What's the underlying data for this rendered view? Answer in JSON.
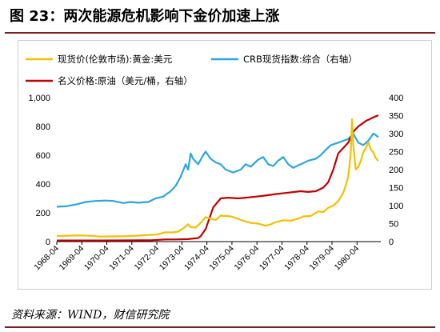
{
  "figure": {
    "title": "图 23：两次能源危机影响下金价加速上涨",
    "source": "资料来源：WIND，财信研究院"
  },
  "colors": {
    "gold": "#f5bf00",
    "crb": "#2ba6de",
    "oil": "#c00000",
    "accent_rule": "#7a1d1d"
  },
  "chart_data": {
    "type": "line",
    "x_tick_labels": [
      "1968-04",
      "1969-04",
      "1970-04",
      "1971-04",
      "1972-04",
      "1973-04",
      "1974-04",
      "1975-04",
      "1976-04",
      "1977-04",
      "1978-04",
      "1979-04",
      "1980-04"
    ],
    "x_range": [
      1968.25,
      1981.2
    ],
    "left_axis": {
      "range": [
        0,
        1000
      ],
      "ticks": [
        "0",
        "200",
        "400",
        "600",
        "800",
        "1,000"
      ]
    },
    "right_axis": {
      "range": [
        0,
        400
      ],
      "ticks": [
        "0",
        "50",
        "100",
        "150",
        "200",
        "250",
        "300",
        "350",
        "400"
      ]
    },
    "legend_position": "top",
    "series": [
      {
        "name": "现货价(伦敦市场):黄金:美元",
        "axis": "left",
        "color": "#f5bf00",
        "points": [
          [
            1968.25,
            39
          ],
          [
            1968.6,
            40
          ],
          [
            1969.0,
            42
          ],
          [
            1969.25,
            43
          ],
          [
            1969.6,
            40
          ],
          [
            1970.0,
            35
          ],
          [
            1970.25,
            36
          ],
          [
            1970.6,
            36
          ],
          [
            1971.0,
            38
          ],
          [
            1971.25,
            39
          ],
          [
            1971.6,
            42
          ],
          [
            1972.0,
            46
          ],
          [
            1972.25,
            49
          ],
          [
            1972.6,
            65
          ],
          [
            1972.9,
            64
          ],
          [
            1973.1,
            70
          ],
          [
            1973.3,
            91
          ],
          [
            1973.5,
            120
          ],
          [
            1973.6,
            100
          ],
          [
            1973.8,
            98
          ],
          [
            1974.0,
            130
          ],
          [
            1974.2,
            170
          ],
          [
            1974.4,
            160
          ],
          [
            1974.6,
            150
          ],
          [
            1974.8,
            180
          ],
          [
            1975.0,
            178
          ],
          [
            1975.2,
            175
          ],
          [
            1975.4,
            165
          ],
          [
            1975.6,
            150
          ],
          [
            1975.8,
            140
          ],
          [
            1976.0,
            130
          ],
          [
            1976.3,
            125
          ],
          [
            1976.6,
            110
          ],
          [
            1976.8,
            120
          ],
          [
            1977.0,
            135
          ],
          [
            1977.3,
            148
          ],
          [
            1977.6,
            145
          ],
          [
            1977.9,
            160
          ],
          [
            1978.1,
            175
          ],
          [
            1978.4,
            178
          ],
          [
            1978.7,
            210
          ],
          [
            1978.9,
            205
          ],
          [
            1979.1,
            235
          ],
          [
            1979.3,
            250
          ],
          [
            1979.5,
            280
          ],
          [
            1979.7,
            340
          ],
          [
            1979.8,
            390
          ],
          [
            1979.9,
            450
          ],
          [
            1980.0,
            620
          ],
          [
            1980.05,
            850
          ],
          [
            1980.1,
            670
          ],
          [
            1980.2,
            500
          ],
          [
            1980.3,
            520
          ],
          [
            1980.4,
            560
          ],
          [
            1980.5,
            620
          ],
          [
            1980.6,
            650
          ],
          [
            1980.7,
            690
          ],
          [
            1980.8,
            640
          ],
          [
            1980.9,
            620
          ],
          [
            1981.0,
            580
          ],
          [
            1981.1,
            560
          ]
        ]
      },
      {
        "name": "CRB现货指数:综合（右轴）",
        "axis": "right",
        "color": "#2ba6de",
        "points": [
          [
            1968.25,
            97
          ],
          [
            1968.6,
            98
          ],
          [
            1969.0,
            103
          ],
          [
            1969.4,
            110
          ],
          [
            1969.8,
            113
          ],
          [
            1970.2,
            114
          ],
          [
            1970.5,
            113
          ],
          [
            1970.9,
            107
          ],
          [
            1971.2,
            110
          ],
          [
            1971.5,
            108
          ],
          [
            1971.9,
            110
          ],
          [
            1972.2,
            120
          ],
          [
            1972.5,
            125
          ],
          [
            1972.8,
            140
          ],
          [
            1973.0,
            155
          ],
          [
            1973.2,
            180
          ],
          [
            1973.4,
            215
          ],
          [
            1973.5,
            200
          ],
          [
            1973.6,
            245
          ],
          [
            1973.7,
            230
          ],
          [
            1973.9,
            215
          ],
          [
            1974.1,
            240
          ],
          [
            1974.2,
            250
          ],
          [
            1974.4,
            230
          ],
          [
            1974.6,
            220
          ],
          [
            1974.8,
            215
          ],
          [
            1975.0,
            200
          ],
          [
            1975.3,
            192
          ],
          [
            1975.6,
            200
          ],
          [
            1975.8,
            215
          ],
          [
            1976.0,
            208
          ],
          [
            1976.3,
            228
          ],
          [
            1976.5,
            235
          ],
          [
            1976.7,
            215
          ],
          [
            1976.9,
            210
          ],
          [
            1977.1,
            225
          ],
          [
            1977.3,
            235
          ],
          [
            1977.5,
            215
          ],
          [
            1977.7,
            205
          ],
          [
            1977.9,
            212
          ],
          [
            1978.1,
            218
          ],
          [
            1978.3,
            225
          ],
          [
            1978.6,
            230
          ],
          [
            1978.8,
            240
          ],
          [
            1979.0,
            255
          ],
          [
            1979.2,
            268
          ],
          [
            1979.5,
            275
          ],
          [
            1979.7,
            280
          ],
          [
            1979.9,
            285
          ],
          [
            1980.1,
            300
          ],
          [
            1980.3,
            275
          ],
          [
            1980.5,
            268
          ],
          [
            1980.7,
            280
          ],
          [
            1980.9,
            300
          ],
          [
            1981.0,
            296
          ],
          [
            1981.1,
            290
          ]
        ]
      },
      {
        "name": "名义价格:原油（美元/桶，右轴）",
        "axis": "right",
        "color": "#c00000",
        "points": [
          [
            1968.25,
            3.1
          ],
          [
            1969.0,
            3.1
          ],
          [
            1970.0,
            3.2
          ],
          [
            1971.0,
            3.4
          ],
          [
            1971.5,
            3.6
          ],
          [
            1972.0,
            3.6
          ],
          [
            1972.6,
            6
          ],
          [
            1973.0,
            6
          ],
          [
            1973.5,
            7
          ],
          [
            1973.9,
            10
          ],
          [
            1974.0,
            15
          ],
          [
            1974.2,
            35
          ],
          [
            1974.5,
            95
          ],
          [
            1974.8,
            120
          ],
          [
            1975.1,
            122
          ],
          [
            1975.5,
            120
          ],
          [
            1975.8,
            122
          ],
          [
            1976.2,
            125
          ],
          [
            1976.6,
            128
          ],
          [
            1977.0,
            132
          ],
          [
            1977.5,
            136
          ],
          [
            1978.0,
            140
          ],
          [
            1978.3,
            138
          ],
          [
            1978.6,
            140
          ],
          [
            1978.9,
            150
          ],
          [
            1979.1,
            165
          ],
          [
            1979.3,
            200
          ],
          [
            1979.5,
            245
          ],
          [
            1979.7,
            260
          ],
          [
            1979.9,
            275
          ],
          [
            1980.1,
            305
          ],
          [
            1980.3,
            320
          ],
          [
            1980.6,
            335
          ],
          [
            1980.9,
            345
          ],
          [
            1981.1,
            351
          ]
        ]
      }
    ]
  }
}
